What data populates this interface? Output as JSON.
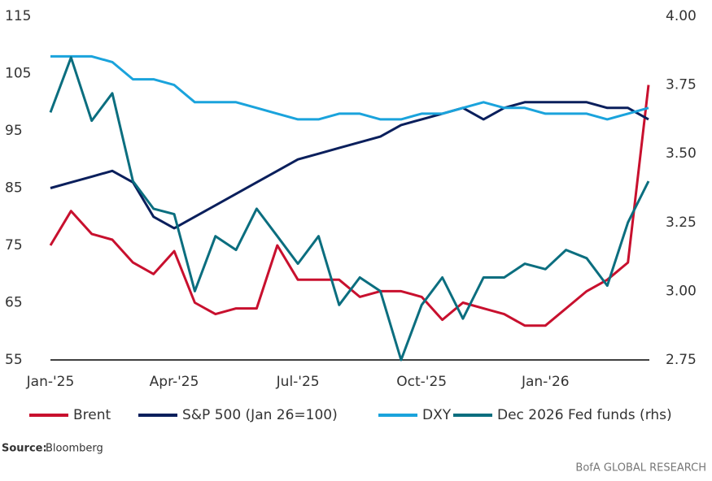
{
  "chart_data": {
    "type": "line",
    "categories": [
      "Jan-'25",
      null,
      null,
      null,
      null,
      null,
      "Apr-'25",
      null,
      null,
      null,
      null,
      null,
      "Jul-'25",
      null,
      null,
      null,
      null,
      null,
      "Oct-'25",
      null,
      null,
      null,
      null,
      null,
      "Jan-'26",
      null,
      null,
      null,
      null,
      null
    ],
    "ylim": [
      55,
      115
    ],
    "yticks": [
      55,
      65,
      75,
      85,
      95,
      105,
      115
    ],
    "y2lim": [
      2.75,
      4
    ],
    "y2ticks": [
      2.75,
      {
        "value": 3,
        "label": "3.00"
      },
      3.25,
      {
        "value": 3.5,
        "label": "3.50"
      },
      3.75,
      {
        "value": 4,
        "label": "4.00"
      }
    ],
    "series": [
      {
        "name": "Brent",
        "color": "#c8102e",
        "values": [
          75,
          81,
          77,
          76,
          72,
          70,
          74,
          65,
          63,
          64,
          64,
          75,
          69,
          69,
          69,
          66,
          67,
          67,
          66,
          62,
          65,
          64,
          63,
          61,
          61,
          64,
          67,
          69,
          72,
          103
        ]
      },
      {
        "name": "S&P 500 (Jan 26=100)",
        "color": "#0a1f5c",
        "values": [
          85,
          86,
          87,
          88,
          86,
          80,
          78,
          80,
          82,
          84,
          86,
          88,
          90,
          91,
          92,
          93,
          94,
          96,
          97,
          98,
          99,
          97,
          99,
          100,
          100,
          100,
          100,
          99,
          99,
          97
        ]
      },
      {
        "name": "DXY",
        "color": "#1aa3dc",
        "values": [
          108,
          108,
          108,
          107,
          104,
          104,
          103,
          100,
          100,
          100,
          99,
          98,
          97,
          97,
          98,
          98,
          97,
          97,
          98,
          98,
          99,
          100,
          99,
          99,
          98,
          98,
          98,
          97,
          98,
          99
        ]
      },
      {
        "name": "Dec 2026 Fed funds (rhs)",
        "color": "#0b6e7f",
        "axis": "y2",
        "values": [
          3.65,
          3.85,
          3.62,
          3.72,
          3.4,
          3.3,
          3.28,
          3.0,
          3.2,
          3.15,
          3.3,
          3.2,
          3.1,
          3.2,
          2.95,
          3.05,
          3.0,
          2.75,
          2.95,
          3.05,
          2.9,
          3.05,
          3.05,
          3.1,
          3.08,
          3.15,
          3.12,
          3.02,
          3.25,
          3.4
        ]
      }
    ],
    "source_label": "Source:",
    "source": "Bloomberg",
    "footer": "BofA GLOBAL RESEARCH"
  }
}
